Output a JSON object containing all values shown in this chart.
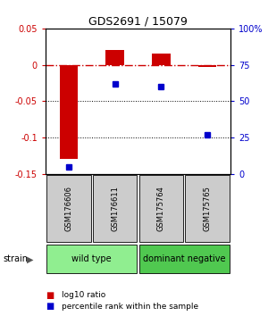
{
  "title": "GDS2691 / 15079",
  "samples": [
    "GSM176606",
    "GSM176611",
    "GSM175764",
    "GSM175765"
  ],
  "log10_ratio": [
    -0.13,
    0.02,
    0.015,
    -0.003
  ],
  "percentile_rank": [
    5,
    62,
    60,
    27
  ],
  "groups": [
    {
      "label": "wild type",
      "samples_idx": [
        0,
        1
      ]
    },
    {
      "label": "dominant negative",
      "samples_idx": [
        2,
        3
      ]
    }
  ],
  "group_colors": [
    "#90EE90",
    "#50C850"
  ],
  "ylim_left": [
    -0.15,
    0.05
  ],
  "ylim_right": [
    0,
    100
  ],
  "yticks_left": [
    -0.15,
    -0.1,
    -0.05,
    0.0,
    0.05
  ],
  "ytick_labels_left": [
    "-0.15",
    "-0.1",
    "-0.05",
    "0",
    "0.05"
  ],
  "yticks_right": [
    0,
    25,
    50,
    75,
    100
  ],
  "ytick_labels_right": [
    "0",
    "25",
    "50",
    "75",
    "100%"
  ],
  "bar_color": "#CC0000",
  "dot_color": "#0000CC",
  "background_color": "#ffffff",
  "sample_box_color": "#cccccc",
  "hline_zero_color": "#CC0000",
  "hline_dotted_color": "#000000",
  "strain_label": "strain",
  "legend_bar": "log10 ratio",
  "legend_dot": "percentile rank within the sample"
}
